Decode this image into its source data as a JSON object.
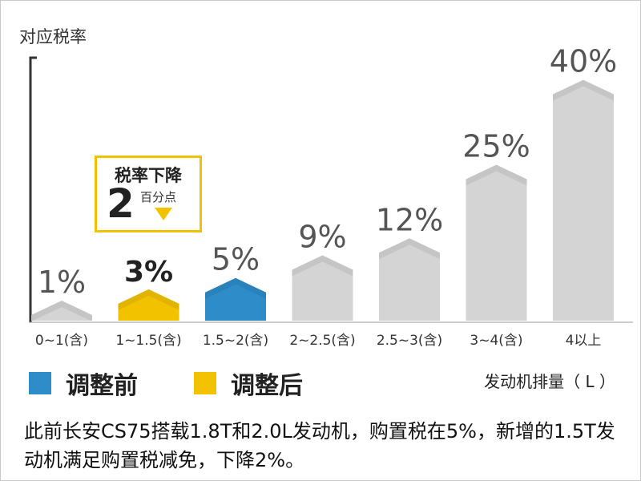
{
  "chart_data": {
    "type": "bar",
    "ylabel": "对应税率",
    "xlabel": "发动机排量（ L ）",
    "categories": [
      "0~1(含)",
      "1~1.5(含)",
      "1.5~2(含)",
      "2~2.5(含)",
      "2.5~3(含)",
      "3~4(含)",
      "4以上"
    ],
    "values": [
      1,
      3,
      5,
      9,
      12,
      25,
      40
    ],
    "value_labels": [
      "1%",
      "3%",
      "5%",
      "9%",
      "12%",
      "25%",
      "40%"
    ],
    "bar_groups": [
      "none",
      "after",
      "before",
      "none",
      "none",
      "none",
      "none"
    ],
    "ylim": [
      0,
      40
    ],
    "grid": false,
    "legend": [
      {
        "name": "调整前",
        "color": "#2e8cc9"
      },
      {
        "name": "调整后",
        "color": "#f2c200"
      }
    ],
    "colors": {
      "default": "#d4d4d4",
      "before": "#2e8cc9",
      "after": "#f2c200"
    }
  },
  "callout": {
    "title": "税率下降",
    "number": "2",
    "unit": "百分点"
  },
  "note": "此前长安CS75搭载1.8T和2.0L发动机，购置税在5%，新增的1.5T发动机满足购置税减免，下降2%。"
}
